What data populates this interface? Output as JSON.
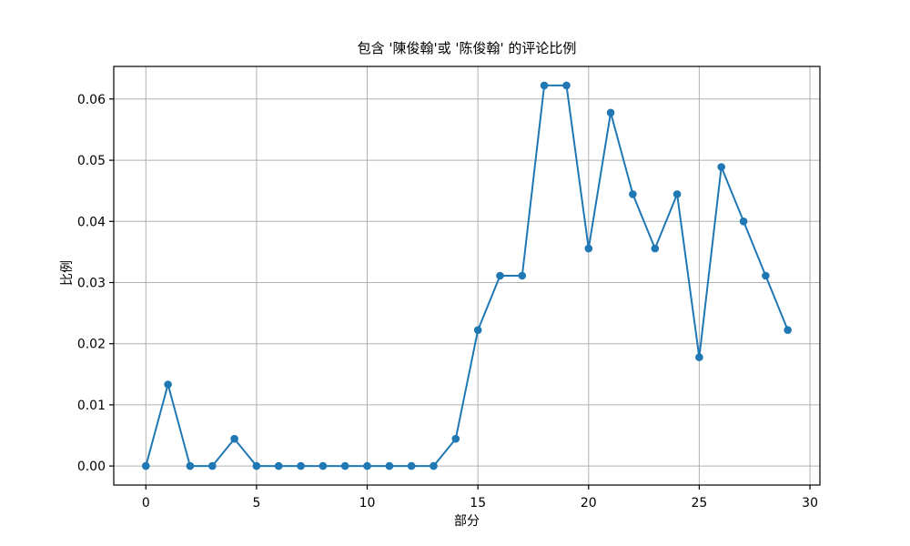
{
  "figure": {
    "background_color": "#ffffff",
    "text_color": "#000000"
  },
  "chart_data": {
    "type": "line",
    "title": "包含 '陳俊翰'或 '陈俊翰' 的评论比例",
    "xlabel": "部分",
    "ylabel": "比例",
    "x": [
      0,
      1,
      2,
      3,
      4,
      5,
      6,
      7,
      8,
      9,
      10,
      11,
      12,
      13,
      14,
      15,
      16,
      17,
      18,
      19,
      20,
      21,
      22,
      23,
      24,
      25,
      26,
      27,
      28,
      29
    ],
    "y": [
      0.0,
      0.013333,
      0.0,
      0.0,
      0.004444,
      0.0,
      0.0,
      0.0,
      0.0,
      0.0,
      0.0,
      0.0,
      0.0,
      0.0,
      0.004444,
      0.022222,
      0.031111,
      0.031111,
      0.062222,
      0.062222,
      0.035556,
      0.057778,
      0.044444,
      0.035556,
      0.044444,
      0.017778,
      0.048889,
      0.04,
      0.031111,
      0.022222
    ],
    "xlim": [
      -1.45,
      30.45
    ],
    "ylim": [
      -0.003111,
      0.065333
    ],
    "xticks": [
      0,
      5,
      10,
      15,
      20,
      25,
      30
    ],
    "xtick_labels": [
      "0",
      "5",
      "10",
      "15",
      "20",
      "25",
      "30"
    ],
    "yticks": [
      0.0,
      0.01,
      0.02,
      0.03,
      0.04,
      0.05,
      0.06
    ],
    "ytick_labels": [
      "0.00",
      "0.01",
      "0.02",
      "0.03",
      "0.04",
      "0.05",
      "0.06"
    ],
    "grid": true,
    "legend": null,
    "line_color": "#1f77b4",
    "marker": "circle",
    "marker_color": "#1f77b4",
    "grid_color": "#b0b0b0",
    "spine_color": "#000000"
  }
}
